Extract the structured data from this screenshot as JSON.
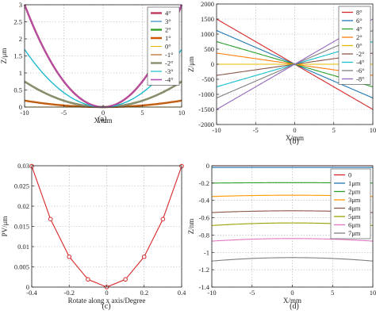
{
  "chart_data": [
    {
      "panel_label": "(a)",
      "type": "line",
      "xlabel": "X/mm",
      "ylabel": "Z/μm",
      "xlim": [
        -10,
        10
      ],
      "ylim": [
        0,
        3
      ],
      "xticks": [
        -10,
        -5,
        0,
        5,
        10
      ],
      "yticks": [
        0,
        0.5,
        1,
        1.5,
        2,
        2.5,
        3
      ],
      "grid": true,
      "legend_position": "top-right",
      "series": [
        {
          "name": "4°",
          "color": "#c0395a",
          "width": 2.4,
          "equation": "quadratic",
          "value_at_x10": 3.0
        },
        {
          "name": "3°",
          "color": "#2e86c1",
          "width": 1.2,
          "equation": "quadratic",
          "value_at_x10": 1.69
        },
        {
          "name": "2°",
          "color": "#33a02c",
          "width": 2.4,
          "equation": "quadratic",
          "value_at_x10": 0.75
        },
        {
          "name": "1°",
          "color": "#d35400",
          "width": 2.4,
          "equation": "quadratic",
          "value_at_x10": 0.19
        },
        {
          "name": "0°",
          "color": "#e6b800",
          "width": 1.0,
          "equation": "quadratic",
          "value_at_x10": 0.0
        },
        {
          "name": "-1°",
          "color": "#b5651d",
          "width": 1.2,
          "equation": "quadratic",
          "value_at_x10": 0.19
        },
        {
          "name": "-2°",
          "color": "#8c8c6e",
          "width": 2.4,
          "equation": "quadratic",
          "value_at_x10": 0.75
        },
        {
          "name": "-3°",
          "color": "#17becf",
          "width": 1.2,
          "equation": "quadratic",
          "value_at_x10": 1.69
        },
        {
          "name": "-4°",
          "color": "#b04fb0",
          "width": 1.6,
          "equation": "quadratic",
          "value_at_x10": 3.0
        }
      ]
    },
    {
      "panel_label": "(b)",
      "type": "line",
      "xlabel": "X/mm",
      "ylabel": "Z/μm",
      "xlim": [
        -10,
        10
      ],
      "ylim": [
        -2000,
        2000
      ],
      "xticks": [
        -10,
        -5,
        0,
        5,
        10
      ],
      "yticks": [
        -2000,
        -1500,
        -1000,
        -500,
        0,
        500,
        1000,
        1500,
        2000
      ],
      "grid": true,
      "legend_position": "top-right",
      "series": [
        {
          "name": "8°",
          "color": "#d62728",
          "equation": "linear",
          "value_at_xneg10": 1500
        },
        {
          "name": "6°",
          "color": "#1f77b4",
          "equation": "linear",
          "value_at_xneg10": 1120
        },
        {
          "name": "4°",
          "color": "#2ca02c",
          "equation": "linear",
          "value_at_xneg10": 750
        },
        {
          "name": "2°",
          "color": "#ff7f0e",
          "equation": "linear",
          "value_at_xneg10": 370
        },
        {
          "name": "0°",
          "color": "#e6b800",
          "equation": "linear",
          "value_at_xneg10": 0
        },
        {
          "name": "-2°",
          "color": "#8c564b",
          "equation": "linear",
          "value_at_xneg10": -370
        },
        {
          "name": "-4°",
          "color": "#17becf",
          "equation": "linear",
          "value_at_xneg10": -750
        },
        {
          "name": "-6°",
          "color": "#7f7f7f",
          "equation": "linear",
          "value_at_xneg10": -1120
        },
        {
          "name": "-8°",
          "color": "#9467bd",
          "equation": "linear",
          "value_at_xneg10": -1500
        }
      ]
    },
    {
      "panel_label": "(c)",
      "type": "line",
      "xlabel": "Rotate along x axis/Degree",
      "ylabel": "PV/μm",
      "xlim": [
        -0.4,
        0.4
      ],
      "ylim": [
        0,
        0.03
      ],
      "xticks": [
        -0.4,
        -0.2,
        0,
        0.2,
        0.4
      ],
      "yticks": [
        0,
        0.005,
        0.01,
        0.015,
        0.02,
        0.025,
        0.03
      ],
      "grid": true,
      "markers": true,
      "series": [
        {
          "color": "#d62728",
          "x": [
            -0.4,
            -0.3,
            -0.2,
            -0.1,
            0,
            0.1,
            0.2,
            0.3,
            0.4
          ],
          "y": [
            0.0299,
            0.0168,
            0.0075,
            0.0019,
            0.0,
            0.0019,
            0.0075,
            0.0168,
            0.0299
          ]
        }
      ]
    },
    {
      "panel_label": "(d)",
      "type": "line",
      "xlabel": "X/mm",
      "ylabel": "Z/nm",
      "xlim": [
        -10,
        10
      ],
      "ylim": [
        -1.4,
        0
      ],
      "xticks": [
        -10,
        -5,
        0,
        5,
        10
      ],
      "yticks": [
        -1.4,
        -1.2,
        -1,
        -0.8,
        -0.6,
        -0.4,
        -0.2,
        0
      ],
      "grid": true,
      "legend_position": "right",
      "series": [
        {
          "name": "0",
          "color": "#d62728",
          "equation": "arch",
          "value_at_center": 0.0,
          "value_at_edge": 0.0
        },
        {
          "name": "1μm",
          "color": "#1f77b4",
          "equation": "arch",
          "value_at_center": -0.02,
          "value_at_edge": -0.02
        },
        {
          "name": "2μm",
          "color": "#2ca02c",
          "equation": "arch",
          "value_at_center": -0.195,
          "value_at_edge": -0.2
        },
        {
          "name": "3μm",
          "color": "#ff9900",
          "equation": "arch",
          "value_at_center": -0.34,
          "value_at_edge": -0.355
        },
        {
          "name": "4μm",
          "color": "#8c564b",
          "equation": "arch",
          "value_at_center": -0.52,
          "value_at_edge": -0.54
        },
        {
          "name": "5μm",
          "color": "#9aa000",
          "equation": "arch",
          "value_at_center": -0.66,
          "value_at_edge": -0.69
        },
        {
          "name": "6μm",
          "color": "#e377c2",
          "equation": "arch",
          "value_at_center": -0.84,
          "value_at_edge": -0.87
        },
        {
          "name": "7μm",
          "color": "#7f7f7f",
          "equation": "arch",
          "value_at_center": -1.06,
          "value_at_edge": -1.1
        }
      ]
    }
  ]
}
